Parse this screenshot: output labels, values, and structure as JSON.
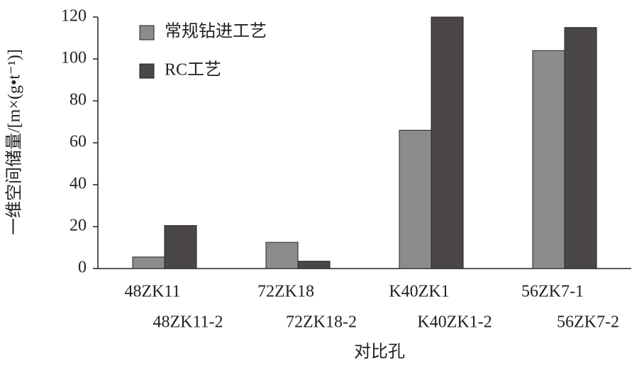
{
  "chart_data": {
    "type": "bar",
    "y_label": "一维空间储量/[m×(g•t⁻¹)]",
    "x_label": "对比孔",
    "categories": [
      "48ZK11",
      "72ZK18",
      "K40ZK1",
      "56ZK7-1"
    ],
    "sub_labels": [
      "48ZK11-2",
      "72ZK18-2",
      "K40ZK1-2",
      "56ZK7-2"
    ],
    "series": [
      {
        "name": "常规钻进工艺",
        "color": "#8c8c8c",
        "values": [
          5.5,
          12.5,
          66,
          104
        ]
      },
      {
        "name": "RC工艺",
        "color": "#4a4649",
        "values": [
          20.5,
          3.5,
          120,
          115
        ]
      }
    ],
    "ylim": [
      0,
      120
    ],
    "yticks": [
      0,
      20,
      40,
      60,
      80,
      100,
      120
    ]
  }
}
